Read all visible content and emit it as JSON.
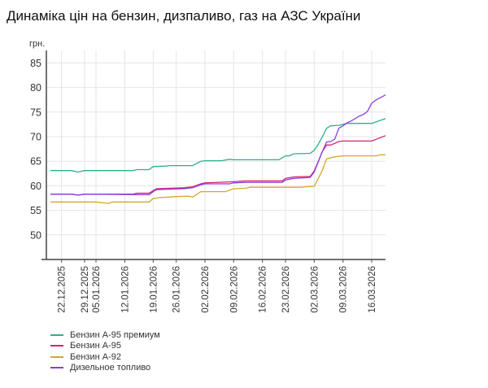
{
  "title": "Динаміка цін на бензин, дизпаливо, газ на АЗС України",
  "chart_data": {
    "type": "line",
    "title": "Динаміка цін на бензин, дизпаливо, газ на АЗС України",
    "ylabel": "грн.",
    "ylim": [
      45,
      88
    ],
    "yticks": [
      50,
      55,
      60,
      65,
      70,
      75,
      80,
      85
    ],
    "xlim": [
      "19.12.2025",
      "19.03.2026"
    ],
    "xticks": [
      "22.12.2025",
      "29.12.2025",
      "05.01.2026",
      "12.01.2026",
      "19.01.2026",
      "26.01.2026",
      "02.02.2026",
      "09.02.2026",
      "16.02.2026",
      "23.02.2026",
      "02.03.2026",
      "09.03.2026",
      "16.03.2026"
    ],
    "grid": true,
    "legend": "bottom-left",
    "series": [
      {
        "name": "Бензин А-95 премиум",
        "color": "#2bb08c",
        "points": [
          [
            "19.12.2025",
            63.1
          ],
          [
            "25.12.2025",
            63.1
          ],
          [
            "27.12.2025",
            62.8
          ],
          [
            "29.12.2025",
            63.1
          ],
          [
            "14.01.2026",
            63.1
          ],
          [
            "15.01.2026",
            63.3
          ],
          [
            "18.01.2026",
            63.3
          ],
          [
            "19.01.2026",
            63.9
          ],
          [
            "23.01.2026",
            64.0
          ],
          [
            "24.01.2026",
            64.1
          ],
          [
            "30.01.2026",
            64.1
          ],
          [
            "01.02.2026",
            65.0
          ],
          [
            "02.02.2026",
            65.1
          ],
          [
            "06.02.2026",
            65.1
          ],
          [
            "08.02.2026",
            65.4
          ],
          [
            "09.02.2026",
            65.3
          ],
          [
            "21.02.2026",
            65.3
          ],
          [
            "23.02.2026",
            66.1
          ],
          [
            "24.02.2026",
            66.1
          ],
          [
            "25.02.2026",
            66.5
          ],
          [
            "01.03.2026",
            66.6
          ],
          [
            "02.03.2026",
            67.2
          ],
          [
            "03.03.2026",
            68.5
          ],
          [
            "04.03.2026",
            70.0
          ],
          [
            "05.03.2026",
            71.7
          ],
          [
            "06.03.2026",
            72.2
          ],
          [
            "08.03.2026",
            72.3
          ],
          [
            "10.03.2026",
            72.7
          ],
          [
            "16.03.2026",
            72.7
          ],
          [
            "19.03.2026",
            73.7
          ]
        ]
      },
      {
        "name": "Бензин А-95",
        "color": "#d6246e",
        "points": [
          [
            "19.12.2025",
            58.3
          ],
          [
            "25.12.2025",
            58.3
          ],
          [
            "27.12.2025",
            58.1
          ],
          [
            "29.12.2025",
            58.3
          ],
          [
            "14.01.2026",
            58.3
          ],
          [
            "15.01.2026",
            58.5
          ],
          [
            "18.01.2026",
            58.5
          ],
          [
            "19.01.2026",
            59.0
          ],
          [
            "20.01.2026",
            59.4
          ],
          [
            "24.01.2026",
            59.5
          ],
          [
            "28.01.2026",
            59.6
          ],
          [
            "30.01.2026",
            59.8
          ],
          [
            "01.02.2026",
            60.4
          ],
          [
            "02.02.2026",
            60.6
          ],
          [
            "08.02.2026",
            60.8
          ],
          [
            "12.02.2026",
            61.0
          ],
          [
            "22.02.2026",
            61.0
          ],
          [
            "23.02.2026",
            61.5
          ],
          [
            "25.02.2026",
            61.8
          ],
          [
            "01.03.2026",
            61.9
          ],
          [
            "02.03.2026",
            63.0
          ],
          [
            "03.03.2026",
            65.0
          ],
          [
            "04.03.2026",
            67.0
          ],
          [
            "05.03.2026",
            68.3
          ],
          [
            "06.03.2026",
            68.3
          ],
          [
            "08.03.2026",
            69.0
          ],
          [
            "09.03.2026",
            69.1
          ],
          [
            "16.03.2026",
            69.1
          ],
          [
            "19.03.2026",
            70.2
          ]
        ]
      },
      {
        "name": "Бензин А-92",
        "color": "#d4a72c",
        "points": [
          [
            "19.12.2025",
            56.7
          ],
          [
            "05.01.2026",
            56.7
          ],
          [
            "08.01.2026",
            56.4
          ],
          [
            "09.01.2026",
            56.7
          ],
          [
            "18.01.2026",
            56.7
          ],
          [
            "19.01.2026",
            57.4
          ],
          [
            "21.01.2026",
            57.6
          ],
          [
            "26.01.2026",
            57.8
          ],
          [
            "29.01.2026",
            57.9
          ],
          [
            "30.01.2026",
            57.7
          ],
          [
            "01.02.2026",
            58.8
          ],
          [
            "07.02.2026",
            58.8
          ],
          [
            "09.02.2026",
            59.4
          ],
          [
            "12.02.2026",
            59.5
          ],
          [
            "13.02.2026",
            59.7
          ],
          [
            "27.02.2026",
            59.7
          ],
          [
            "28.02.2026",
            59.8
          ],
          [
            "02.03.2026",
            59.9
          ],
          [
            "03.03.2026",
            61.5
          ],
          [
            "04.03.2026",
            63.2
          ],
          [
            "05.03.2026",
            65.5
          ],
          [
            "07.03.2026",
            65.9
          ],
          [
            "09.03.2026",
            66.1
          ],
          [
            "17.03.2026",
            66.1
          ],
          [
            "18.03.2026",
            66.3
          ],
          [
            "19.03.2026",
            66.3
          ]
        ]
      },
      {
        "name": "Дизельное топливо",
        "color": "#8a3ee0",
        "points": [
          [
            "19.12.2025",
            58.3
          ],
          [
            "25.12.2025",
            58.3
          ],
          [
            "27.12.2025",
            58.1
          ],
          [
            "29.12.2025",
            58.3
          ],
          [
            "16.01.2026",
            58.2
          ],
          [
            "18.01.2026",
            58.2
          ],
          [
            "19.01.2026",
            58.8
          ],
          [
            "20.01.2026",
            59.2
          ],
          [
            "24.01.2026",
            59.3
          ],
          [
            "28.01.2026",
            59.4
          ],
          [
            "30.01.2026",
            59.6
          ],
          [
            "01.02.2026",
            60.2
          ],
          [
            "02.02.2026",
            60.4
          ],
          [
            "08.02.2026",
            60.4
          ],
          [
            "09.02.2026",
            60.6
          ],
          [
            "12.02.2026",
            60.7
          ],
          [
            "22.02.2026",
            60.7
          ],
          [
            "23.02.2026",
            61.2
          ],
          [
            "25.02.2026",
            61.5
          ],
          [
            "01.03.2026",
            61.7
          ],
          [
            "02.03.2026",
            62.8
          ],
          [
            "04.03.2026",
            67.0
          ],
          [
            "05.03.2026",
            68.9
          ],
          [
            "06.03.2026",
            69.0
          ],
          [
            "07.03.2026",
            69.5
          ],
          [
            "08.03.2026",
            71.7
          ],
          [
            "09.03.2026",
            72.2
          ],
          [
            "10.03.2026",
            72.8
          ],
          [
            "11.03.2026",
            73.2
          ],
          [
            "13.03.2026",
            74.2
          ],
          [
            "14.03.2026",
            74.5
          ],
          [
            "15.03.2026",
            75.2
          ],
          [
            "16.03.2026",
            76.8
          ],
          [
            "17.03.2026",
            77.5
          ],
          [
            "18.03.2026",
            78.0
          ],
          [
            "19.03.2026",
            78.5
          ]
        ]
      }
    ]
  }
}
